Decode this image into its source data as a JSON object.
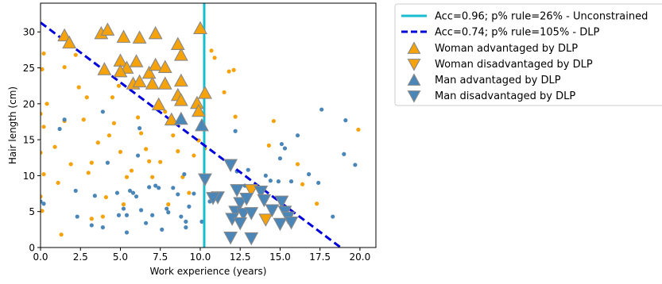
{
  "chart_data": {
    "type": "scatter",
    "xlabel": "Work experience (years)",
    "ylabel": "Hair length (cm)",
    "xlim": [
      0,
      21
    ],
    "ylim": [
      0,
      34
    ],
    "x_ticks": [
      0.0,
      2.5,
      5.0,
      7.5,
      10.0,
      12.5,
      15.0,
      17.5,
      20.0
    ],
    "x_tick_labels": [
      "0.0",
      "2.5",
      "5.0",
      "7.5",
      "10.0",
      "12.5",
      "15.0",
      "17.5",
      "20.0"
    ],
    "y_ticks": [
      0,
      5,
      10,
      15,
      20,
      25,
      30
    ],
    "y_tick_labels": [
      "0",
      "5",
      "10",
      "15",
      "20",
      "25",
      "30"
    ],
    "grid": false,
    "legend_position": "outside-right",
    "lines": [
      {
        "name": "Acc=0.96; p% rule=26% - Unconstrained",
        "style": "solid",
        "color": "#17becf",
        "kind": "vertical",
        "x": 10.25
      },
      {
        "name": "Acc=0.74; p% rule=105% - DLP",
        "style": "dashed",
        "color": "#0000dd",
        "kind": "segment",
        "points": [
          [
            0,
            31.3
          ],
          [
            18.8,
            0
          ]
        ]
      }
    ],
    "series": [
      {
        "name": "Woman advantaged by DLP",
        "marker": "triangle-up",
        "color": "#f5a20b",
        "points": [
          [
            1.5,
            29.5
          ],
          [
            1.8,
            28.5
          ],
          [
            3.8,
            29.8
          ],
          [
            4.2,
            30.3
          ],
          [
            5.2,
            29.3
          ],
          [
            6.2,
            29.2
          ],
          [
            7.2,
            29.8
          ],
          [
            8.6,
            28.3
          ],
          [
            10.0,
            30.5
          ],
          [
            4.0,
            24.8
          ],
          [
            5.0,
            26.0
          ],
          [
            5.4,
            25.0
          ],
          [
            6.0,
            25.9
          ],
          [
            6.8,
            24.3
          ],
          [
            7.2,
            25.4
          ],
          [
            7.8,
            25.1
          ],
          [
            8.8,
            26.8
          ],
          [
            5.0,
            24.5
          ],
          [
            5.8,
            22.8
          ],
          [
            6.2,
            23.1
          ],
          [
            7.0,
            22.8
          ],
          [
            7.8,
            22.8
          ],
          [
            8.8,
            23.2
          ],
          [
            8.6,
            21.2
          ],
          [
            8.8,
            20.5
          ],
          [
            7.4,
            19.9
          ],
          [
            9.8,
            20.1
          ],
          [
            9.9,
            19.0
          ],
          [
            10.3,
            21.5
          ],
          [
            8.2,
            17.8
          ]
        ]
      },
      {
        "name": "Woman disadvantaged by DLP",
        "marker": "triangle-down",
        "color": "#f5a20b",
        "points": [
          [
            13.2,
            8.0
          ],
          [
            14.1,
            3.9
          ]
        ]
      },
      {
        "name": "Man advantaged by DLP",
        "marker": "triangle-up",
        "color": "#4a86b8",
        "points": [
          [
            8.8,
            17.9
          ],
          [
            10.1,
            17.0
          ]
        ]
      },
      {
        "name": "Man disadvantaged by DLP",
        "marker": "triangle-down",
        "color": "#4a86b8",
        "points": [
          [
            10.3,
            9.5
          ],
          [
            11.9,
            11.5
          ],
          [
            11.1,
            7.0
          ],
          [
            10.8,
            6.9
          ],
          [
            12.3,
            8.0
          ],
          [
            12.5,
            6.2
          ],
          [
            12.2,
            5.0
          ],
          [
            12.7,
            4.7
          ],
          [
            12.0,
            4.0
          ],
          [
            12.5,
            3.4
          ],
          [
            11.9,
            1.4
          ],
          [
            13.2,
            1.3
          ],
          [
            13.8,
            7.8
          ],
          [
            14.0,
            6.6
          ],
          [
            15.1,
            6.4
          ],
          [
            14.5,
            5.2
          ],
          [
            15.3,
            5.0
          ],
          [
            15.5,
            4.2
          ],
          [
            15.0,
            3.3
          ],
          [
            15.7,
            3.5
          ],
          [
            13.2,
            4.8
          ],
          [
            12.9,
            6.8
          ]
        ]
      },
      {
        "name": "",
        "marker": "dot",
        "color": "#f5a20b",
        "points": [
          [
            0.2,
            27.0
          ],
          [
            0.1,
            24.8
          ],
          [
            0.4,
            20.0
          ],
          [
            0.0,
            18.6
          ],
          [
            0.2,
            16.8
          ],
          [
            0.0,
            13.2
          ],
          [
            0.2,
            10.2
          ],
          [
            0.0,
            7.1
          ],
          [
            0.1,
            5.1
          ],
          [
            0.9,
            14.0
          ],
          [
            1.1,
            9.0
          ],
          [
            1.3,
            1.8
          ],
          [
            1.5,
            25.1
          ],
          [
            1.5,
            17.6
          ],
          [
            1.9,
            11.6
          ],
          [
            2.2,
            26.8
          ],
          [
            2.4,
            22.3
          ],
          [
            2.7,
            17.8
          ],
          [
            2.9,
            20.9
          ],
          [
            3.0,
            10.4
          ],
          [
            3.2,
            11.8
          ],
          [
            3.2,
            4.0
          ],
          [
            3.6,
            14.6
          ],
          [
            3.9,
            4.3
          ],
          [
            4.1,
            7.0
          ],
          [
            4.3,
            15.6
          ],
          [
            4.5,
            20.9
          ],
          [
            4.6,
            17.3
          ],
          [
            4.9,
            22.5
          ],
          [
            5.0,
            13.3
          ],
          [
            5.2,
            6.0
          ],
          [
            5.4,
            9.8
          ],
          [
            5.7,
            10.7
          ],
          [
            6.1,
            18.1
          ],
          [
            6.3,
            15.9
          ],
          [
            6.6,
            13.7
          ],
          [
            6.8,
            12.0
          ],
          [
            7.0,
            9.8
          ],
          [
            7.5,
            11.9
          ],
          [
            7.8,
            18.9
          ],
          [
            8.0,
            6.0
          ],
          [
            8.3,
            15.6
          ],
          [
            8.6,
            13.4
          ],
          [
            8.9,
            9.8
          ],
          [
            9.3,
            7.6
          ],
          [
            9.6,
            12.8
          ],
          [
            9.9,
            14.9
          ],
          [
            10.3,
            13.8
          ],
          [
            10.7,
            27.4
          ],
          [
            10.9,
            26.4
          ],
          [
            11.5,
            21.6
          ],
          [
            11.8,
            24.5
          ],
          [
            12.1,
            24.7
          ],
          [
            12.2,
            18.2
          ],
          [
            14.3,
            14.2
          ],
          [
            14.6,
            17.6
          ],
          [
            16.1,
            11.6
          ],
          [
            16.4,
            8.8
          ],
          [
            17.3,
            6.1
          ],
          [
            19.9,
            16.4
          ]
        ]
      },
      {
        "name": "",
        "marker": "dot",
        "color": "#4a86b8",
        "points": [
          [
            0.0,
            6.4
          ],
          [
            0.2,
            6.1
          ],
          [
            1.2,
            16.5
          ],
          [
            1.5,
            17.8
          ],
          [
            2.2,
            7.9
          ],
          [
            2.3,
            4.3
          ],
          [
            3.2,
            3.1
          ],
          [
            3.4,
            7.2
          ],
          [
            3.9,
            2.8
          ],
          [
            3.9,
            18.9
          ],
          [
            4.2,
            11.8
          ],
          [
            4.8,
            7.6
          ],
          [
            4.9,
            4.5
          ],
          [
            5.2,
            5.4
          ],
          [
            5.4,
            4.5
          ],
          [
            5.4,
            2.1
          ],
          [
            5.6,
            7.9
          ],
          [
            5.8,
            7.6
          ],
          [
            6.0,
            7.1
          ],
          [
            6.1,
            12.8
          ],
          [
            6.2,
            16.6
          ],
          [
            6.3,
            5.2
          ],
          [
            6.6,
            3.4
          ],
          [
            6.8,
            8.4
          ],
          [
            7.0,
            4.5
          ],
          [
            7.2,
            8.6
          ],
          [
            7.4,
            8.3
          ],
          [
            7.6,
            2.5
          ],
          [
            7.9,
            5.4
          ],
          [
            8.0,
            4.9
          ],
          [
            8.3,
            8.3
          ],
          [
            8.6,
            7.4
          ],
          [
            8.8,
            4.3
          ],
          [
            9.0,
            10.2
          ],
          [
            9.1,
            3.6
          ],
          [
            9.1,
            2.8
          ],
          [
            9.3,
            5.7
          ],
          [
            9.6,
            7.5
          ],
          [
            10.1,
            3.6
          ],
          [
            10.6,
            6.4
          ],
          [
            11.8,
            12.0
          ],
          [
            12.2,
            16.2
          ],
          [
            12.3,
            10.6
          ],
          [
            12.8,
            8.6
          ],
          [
            13.0,
            10.8
          ],
          [
            14.1,
            10.0
          ],
          [
            14.4,
            9.3
          ],
          [
            14.9,
            9.2
          ],
          [
            15.0,
            12.4
          ],
          [
            15.1,
            14.4
          ],
          [
            15.3,
            13.8
          ],
          [
            15.7,
            9.2
          ],
          [
            16.1,
            15.6
          ],
          [
            16.8,
            10.2
          ],
          [
            17.4,
            9.0
          ],
          [
            17.6,
            19.2
          ],
          [
            18.3,
            4.3
          ],
          [
            19.0,
            13.0
          ],
          [
            19.1,
            17.7
          ],
          [
            19.7,
            11.5
          ]
        ]
      }
    ]
  }
}
